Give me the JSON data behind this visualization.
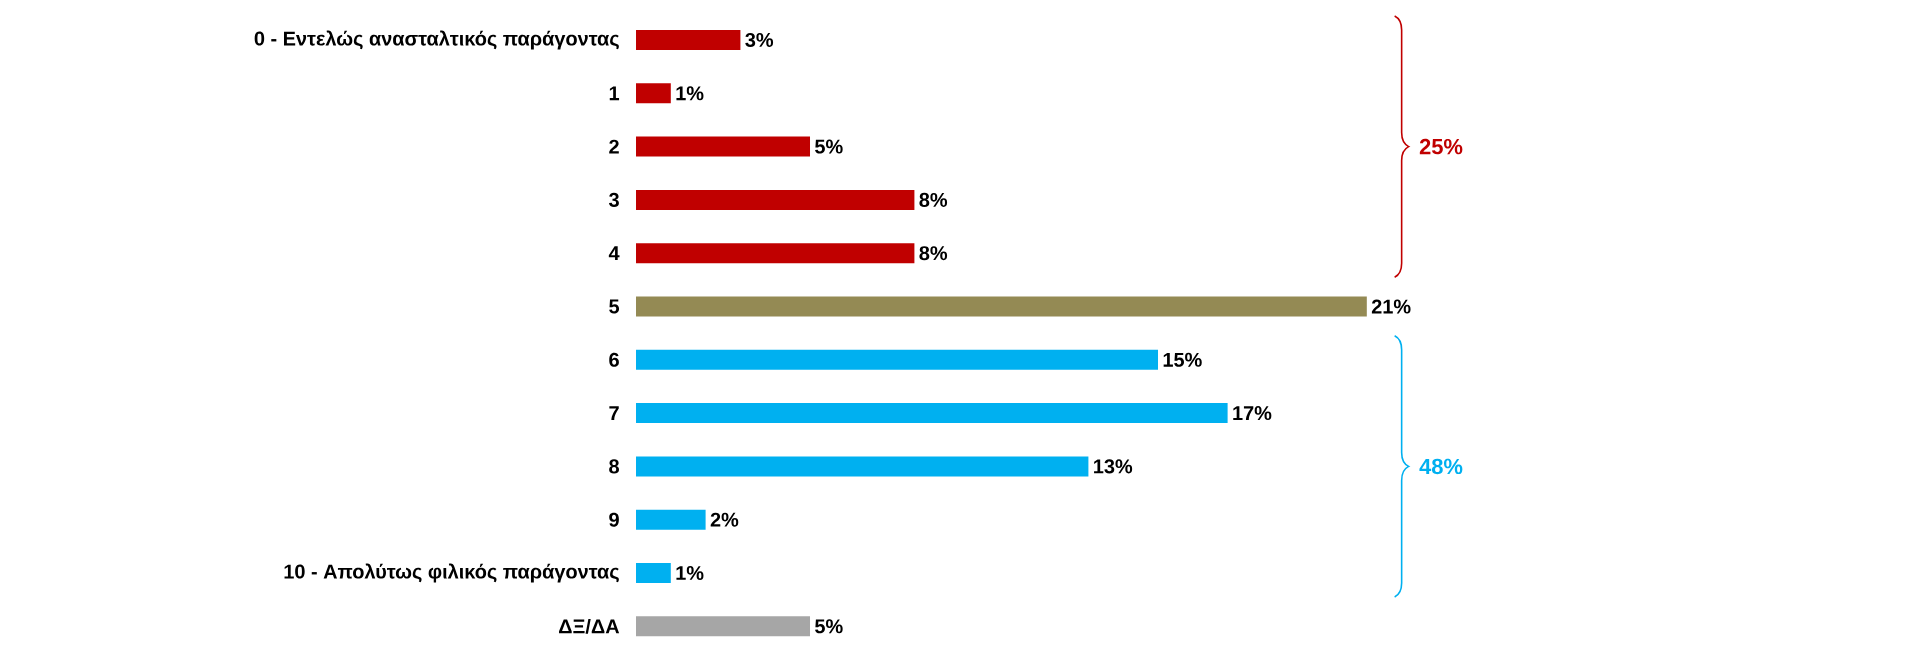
{
  "chart_data": {
    "type": "bar",
    "orientation": "horizontal",
    "categories": [
      "0 - Εντελώς ανασταλτικός παράγοντας",
      "1",
      "2",
      "3",
      "4",
      "5",
      "6",
      "7",
      "8",
      "9",
      "10 - Απολύτως φιλικός παράγοντας",
      "ΔΞ/ΔΑ"
    ],
    "values": [
      3,
      1,
      5,
      8,
      8,
      21,
      15,
      17,
      13,
      2,
      1,
      5
    ],
    "colors": [
      "#c00000",
      "#c00000",
      "#c00000",
      "#c00000",
      "#c00000",
      "#948a54",
      "#00b0f0",
      "#00b0f0",
      "#00b0f0",
      "#00b0f0",
      "#00b0f0",
      "#a6a6a6"
    ],
    "value_labels": [
      "3%",
      "1%",
      "5%",
      "8%",
      "8%",
      "21%",
      "15%",
      "17%",
      "13%",
      "2%",
      "1%",
      "5%"
    ],
    "annotations": [
      "25%",
      "48%"
    ]
  }
}
